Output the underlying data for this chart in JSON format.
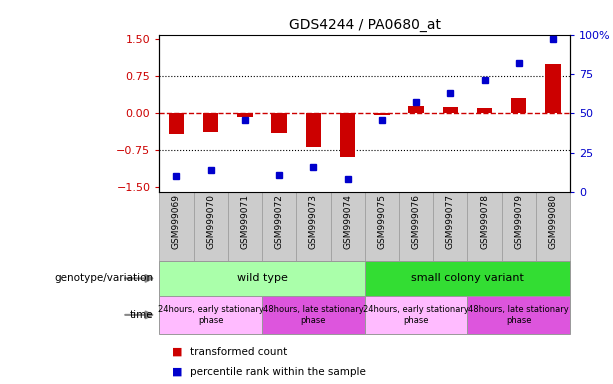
{
  "title": "GDS4244 / PA0680_at",
  "samples": [
    "GSM999069",
    "GSM999070",
    "GSM999071",
    "GSM999072",
    "GSM999073",
    "GSM999074",
    "GSM999075",
    "GSM999076",
    "GSM999077",
    "GSM999078",
    "GSM999079",
    "GSM999080"
  ],
  "bar_values": [
    -0.42,
    -0.38,
    -0.07,
    -0.4,
    -0.68,
    -0.88,
    -0.03,
    0.14,
    0.13,
    0.1,
    0.32,
    1.0
  ],
  "dot_values": [
    10,
    14,
    46,
    11,
    16,
    8,
    46,
    57,
    63,
    71,
    82,
    97
  ],
  "ylim_left": [
    -1.6,
    1.6
  ],
  "ylim_right": [
    0,
    100
  ],
  "yticks_left": [
    -1.5,
    -0.75,
    0,
    0.75,
    1.5
  ],
  "yticks_right": [
    0,
    25,
    50,
    75,
    100
  ],
  "bar_color": "#cc0000",
  "dot_color": "#0000cc",
  "hline_color": "#cc0000",
  "dotted_line_color": "#000000",
  "bg_color": "#ffffff",
  "genotype_label": "genotype/variation",
  "time_label": "time",
  "genotype_groups": [
    {
      "label": "wild type",
      "start": 0,
      "end": 6,
      "color": "#aaffaa"
    },
    {
      "label": "small colony variant",
      "start": 6,
      "end": 12,
      "color": "#33dd33"
    }
  ],
  "time_groups": [
    {
      "label": "24hours, early stationary\nphase",
      "start": 0,
      "end": 3,
      "color": "#ffbbff"
    },
    {
      "label": "48hours, late stationary\nphase",
      "start": 3,
      "end": 6,
      "color": "#dd55dd"
    },
    {
      "label": "24hours, early stationary\nphase",
      "start": 6,
      "end": 9,
      "color": "#ffbbff"
    },
    {
      "label": "48hours, late stationary\nphase",
      "start": 9,
      "end": 12,
      "color": "#dd55dd"
    }
  ],
  "legend_bar_label": "transformed count",
  "legend_dot_label": "percentile rank within the sample",
  "tick_label_bg": "#cccccc",
  "separator_color": "#999999",
  "arrow_color": "#888888"
}
